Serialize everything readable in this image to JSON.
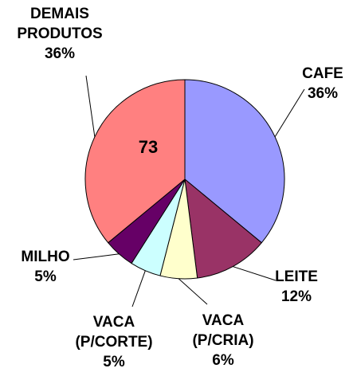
{
  "chart_data": {
    "type": "pie",
    "categories": [
      "CAFE",
      "LEITE",
      "VACA (P/CRIA)",
      "VACA (P/CORTE)",
      "MILHO",
      "DEMAIS PRODUTOS"
    ],
    "values": [
      36,
      12,
      6,
      5,
      5,
      36
    ],
    "value_labels": [
      "36%",
      "12%",
      "6%",
      "5%",
      "5%",
      "36%"
    ],
    "colors": [
      "#9999ff",
      "#993366",
      "#ffffcc",
      "#ccffff",
      "#660066",
      "#ff8080"
    ],
    "annotation": "73"
  }
}
